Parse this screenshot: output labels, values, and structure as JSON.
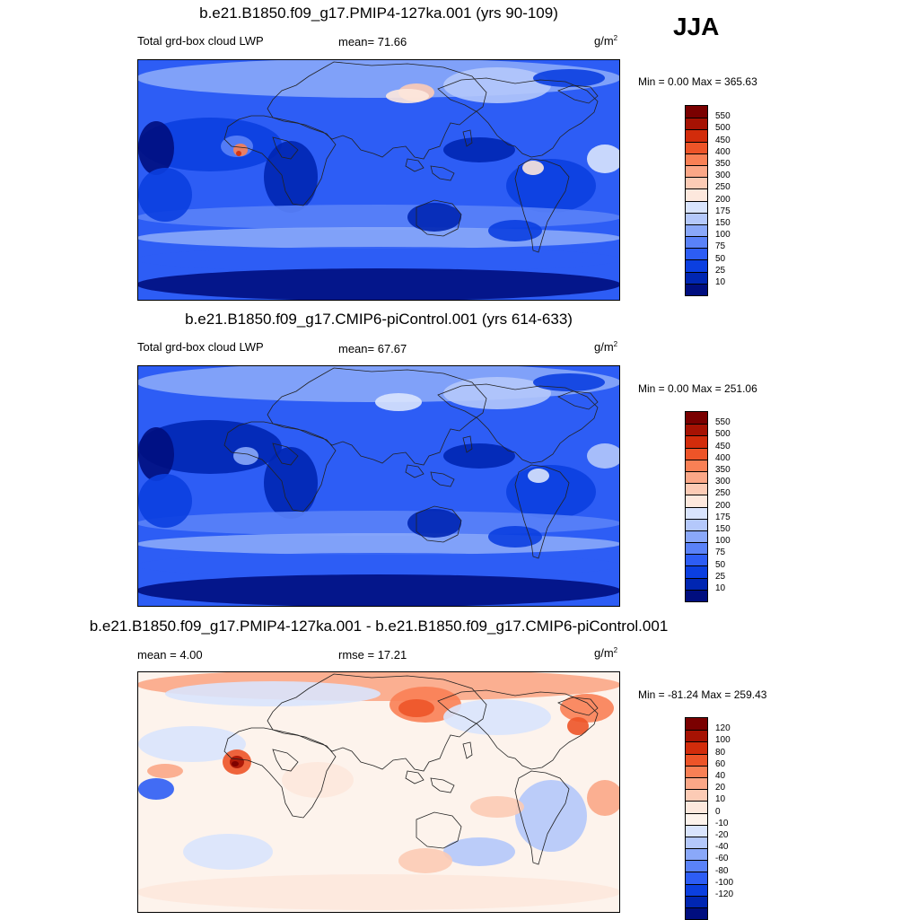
{
  "season": "JJA",
  "coast_color": "#222222",
  "panels": [
    {
      "title": "b.e21.B1850.f09_g17.PMIP4-127ka.001 (yrs 90-109)",
      "left_label": "Total grd-box cloud LWP",
      "center_label": "mean=  71.66",
      "units_base": "g/m",
      "units_exp": "2",
      "minmax": "Min =   0.00 Max = 365.63",
      "palette": [
        "#000e7f",
        "#0026b2",
        "#0b3fe0",
        "#2d5df5",
        "#5a82f8",
        "#8aa8f9",
        "#b4c8fb",
        "#d9e4fd",
        "#fde8dd",
        "#fccbb5",
        "#fba787",
        "#f98055",
        "#ed5428",
        "#d22c0b",
        "#a61203",
        "#7a0000"
      ],
      "levels": [
        "550",
        "500",
        "450",
        "400",
        "350",
        "300",
        "250",
        "200",
        "175",
        "150",
        "100",
        "75",
        "50",
        "25",
        "10"
      ],
      "kind": "main"
    },
    {
      "title": "b.e21.B1850.f09_g17.CMIP6-piControl.001 (yrs 614-633)",
      "left_label": "Total grd-box cloud LWP",
      "center_label": "mean=  67.67",
      "units_base": "g/m",
      "units_exp": "2",
      "minmax": "Min =   0.00 Max = 251.06",
      "palette": [
        "#000e7f",
        "#0026b2",
        "#0b3fe0",
        "#2d5df5",
        "#5a82f8",
        "#8aa8f9",
        "#b4c8fb",
        "#d9e4fd",
        "#fde8dd",
        "#fccbb5",
        "#fba787",
        "#f98055",
        "#ed5428",
        "#d22c0b",
        "#a61203",
        "#7a0000"
      ],
      "levels": [
        "550",
        "500",
        "450",
        "400",
        "350",
        "300",
        "250",
        "200",
        "175",
        "150",
        "100",
        "75",
        "50",
        "25",
        "10"
      ],
      "kind": "ctrl"
    },
    {
      "title": "b.e21.B1850.f09_g17.PMIP4-127ka.001 - b.e21.B1850.f09_g17.CMIP6-piControl.001",
      "left_label": "mean =   4.00",
      "center_label": "rmse =  17.21",
      "units_base": "g/m",
      "units_exp": "2",
      "minmax": "Min = -81.24 Max = 259.43",
      "palette": [
        "#000e7f",
        "#0026b2",
        "#0b3fe0",
        "#2d5df5",
        "#5a82f8",
        "#8aa8f9",
        "#b4c8fb",
        "#d9e4fd",
        "#fdf3ec",
        "#fde8dd",
        "#fccbb5",
        "#fba787",
        "#f98055",
        "#ed5428",
        "#d22c0b",
        "#a61203",
        "#7a0000"
      ],
      "levels": [
        "120",
        "100",
        "80",
        "60",
        "40",
        "20",
        "10",
        "0",
        "-10",
        "-20",
        "-40",
        "-60",
        "-80",
        "-100",
        "-120"
      ],
      "kind": "diff"
    }
  ]
}
